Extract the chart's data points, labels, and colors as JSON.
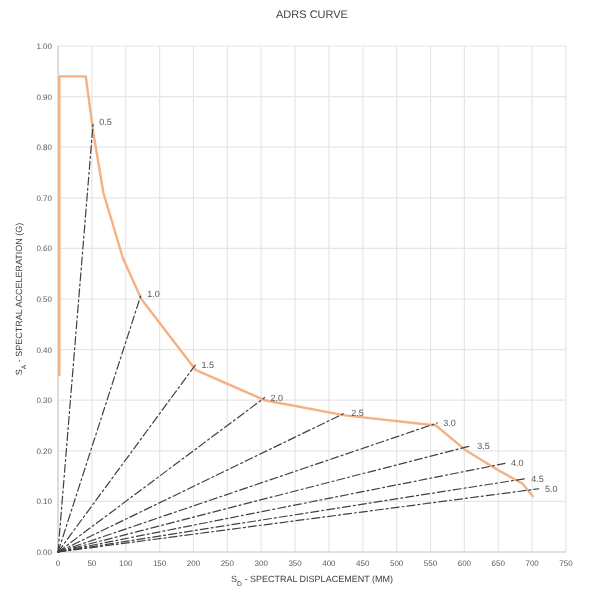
{
  "chart_data": {
    "type": "line",
    "title": "ADRS CURVE",
    "xlabel": "S$_{D}$ - SPECTRAL DISPLACEMENT (MM)",
    "ylabel": "S$_{A}$ - SPECTRAL ACCELERATION (G)",
    "xlim": [
      0,
      750
    ],
    "xticks": [
      0,
      50,
      100,
      150,
      200,
      250,
      300,
      350,
      400,
      450,
      500,
      550,
      600,
      650,
      700,
      750
    ],
    "ylim": [
      0,
      1
    ],
    "yticks": [
      {
        "value": 0,
        "label": "0.00"
      },
      {
        "value": 0.1,
        "label": "0.10"
      },
      {
        "value": 0.2,
        "label": "0.20"
      },
      {
        "value": 0.3,
        "label": "0.30"
      },
      {
        "value": 0.4,
        "label": "0.40"
      },
      {
        "value": 0.5,
        "label": "0.50"
      },
      {
        "value": 0.6,
        "label": "0.60"
      },
      {
        "value": 0.7,
        "label": "0.70"
      },
      {
        "value": 0.8,
        "label": "0.80"
      },
      {
        "value": 0.9,
        "label": "0.90"
      },
      {
        "value": 1,
        "label": "1.00"
      }
    ],
    "grid": true,
    "series": [
      {
        "color": "#f4b183",
        "line_style": "solid",
        "x": [
          2,
          2,
          41,
          52,
          67,
          96,
          123,
          203,
          305,
          424,
          558,
          603,
          652,
          686,
          701
        ],
        "values": [
          0.35,
          0.94,
          0.94,
          0.83,
          0.71,
          0.58,
          0.5,
          0.36,
          0.3,
          0.27,
          0.25,
          0.2,
          0.16,
          0.135,
          0.11
        ]
      },
      {
        "name": "0.5",
        "color": "#404040",
        "line_style": "dashed",
        "x": [
          0,
          52
        ],
        "values": [
          0,
          0.85
        ]
      },
      {
        "name": "1.0",
        "color": "#404040",
        "line_style": "dashed",
        "x": [
          0,
          123
        ],
        "values": [
          0,
          0.51
        ]
      },
      {
        "name": "1.5",
        "color": "#404040",
        "line_style": "dashed",
        "x": [
          0,
          203
        ],
        "values": [
          0,
          0.37
        ]
      },
      {
        "name": "2.0",
        "color": "#404040",
        "line_style": "dashed",
        "x": [
          0,
          305
        ],
        "values": [
          0,
          0.305
        ]
      },
      {
        "name": "2.5",
        "color": "#404040",
        "line_style": "dashed",
        "x": [
          0,
          424
        ],
        "values": [
          0,
          0.275
        ]
      },
      {
        "name": "3.0",
        "color": "#404040",
        "line_style": "dashed",
        "x": [
          0,
          560
        ],
        "values": [
          0,
          0.255
        ]
      },
      {
        "name": "3.5",
        "color": "#404040",
        "line_style": "dashed",
        "x": [
          0,
          610
        ],
        "values": [
          0,
          0.21
        ]
      },
      {
        "name": "4.0",
        "color": "#404040",
        "line_style": "dashed",
        "x": [
          0,
          660
        ],
        "values": [
          0,
          0.175
        ]
      },
      {
        "name": "4.5",
        "color": "#404040",
        "line_style": "dashed",
        "x": [
          0,
          690
        ],
        "values": [
          0,
          0.145
        ]
      },
      {
        "name": "5.0",
        "color": "#404040",
        "line_style": "dashed",
        "x": [
          0,
          710
        ],
        "values": [
          0,
          0.125
        ]
      }
    ]
  }
}
